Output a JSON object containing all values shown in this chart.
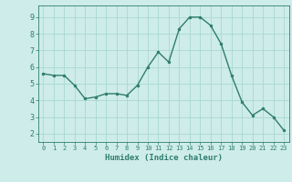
{
  "x": [
    0,
    1,
    2,
    3,
    4,
    5,
    6,
    7,
    8,
    9,
    10,
    11,
    12,
    13,
    14,
    15,
    16,
    17,
    18,
    19,
    20,
    21,
    22,
    23
  ],
  "y": [
    5.6,
    5.5,
    5.5,
    4.9,
    4.1,
    4.2,
    4.4,
    4.4,
    4.3,
    4.9,
    6.0,
    6.9,
    6.3,
    8.3,
    9.0,
    9.0,
    8.5,
    7.4,
    5.5,
    3.9,
    3.1,
    3.5,
    3.0,
    2.2
  ],
  "line_color": "#2e7d6e",
  "marker": "o",
  "marker_size": 2.0,
  "background_color": "#ceecea",
  "grid_color": "#a8d8d2",
  "xlabel": "Humidex (Indice chaleur)",
  "xlim": [
    -0.5,
    23.5
  ],
  "ylim": [
    1.5,
    9.7
  ],
  "yticks": [
    2,
    3,
    4,
    5,
    6,
    7,
    8,
    9
  ],
  "xticks": [
    0,
    1,
    2,
    3,
    4,
    5,
    6,
    7,
    8,
    9,
    10,
    11,
    12,
    13,
    14,
    15,
    16,
    17,
    18,
    19,
    20,
    21,
    22,
    23
  ],
  "tick_color": "#2e7d6e",
  "label_color": "#2e7d6e",
  "spine_color": "#2e7d6e"
}
